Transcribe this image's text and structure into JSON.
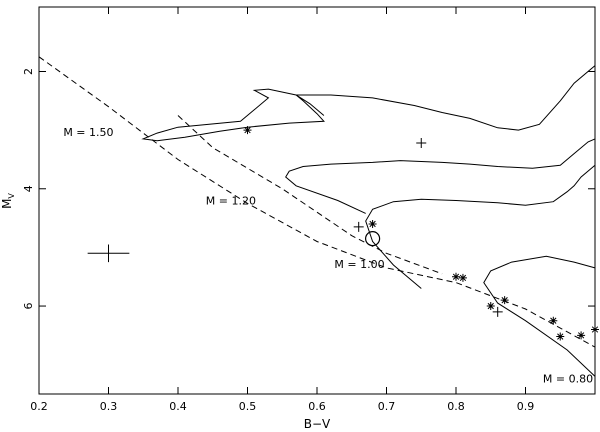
{
  "chart_data": {
    "type": "line",
    "xlabel": "B−V",
    "ylabel": "M",
    "ylabel_sub": "V",
    "xlim": [
      0.2,
      1.0
    ],
    "ylim": [
      7.5,
      0.9
    ],
    "x_ticks": [
      0.2,
      0.3,
      0.4,
      0.5,
      0.6,
      0.7,
      0.8,
      0.9
    ],
    "x_tick_labels": [
      "0.2",
      "0.3",
      "0.4",
      "0.5",
      "0.6",
      "0.7",
      "0.8",
      "0.9"
    ],
    "y_ticks": [
      2,
      4,
      6
    ],
    "y_tick_labels": [
      "2",
      "4",
      "6"
    ],
    "grid": false,
    "tracks": [
      {
        "label": "M =  1.50",
        "label_at": [
          0.235,
          3.1
        ],
        "values": [
          [
            0.61,
            2.75
          ],
          [
            0.59,
            2.55
          ],
          [
            0.57,
            2.4
          ],
          [
            0.53,
            2.3
          ],
          [
            0.51,
            2.32
          ],
          [
            0.53,
            2.45
          ],
          [
            0.49,
            2.85
          ],
          [
            0.4,
            2.95
          ],
          [
            0.37,
            3.05
          ],
          [
            0.35,
            3.15
          ],
          [
            0.37,
            3.18
          ],
          [
            0.41,
            3.12
          ],
          [
            0.46,
            3.02
          ],
          [
            0.5,
            2.95
          ],
          [
            0.56,
            2.88
          ],
          [
            0.61,
            2.85
          ],
          [
            0.6,
            2.72
          ],
          [
            0.58,
            2.5
          ],
          [
            0.57,
            2.4
          ],
          [
            0.62,
            2.4
          ],
          [
            0.68,
            2.45
          ],
          [
            0.74,
            2.58
          ],
          [
            0.78,
            2.7
          ],
          [
            0.82,
            2.8
          ],
          [
            0.86,
            2.96
          ],
          [
            0.89,
            3.0
          ],
          [
            0.92,
            2.9
          ],
          [
            0.95,
            2.5
          ],
          [
            0.97,
            2.2
          ],
          [
            1.0,
            1.9
          ]
        ]
      },
      {
        "label": "M =  1.20",
        "label_at": [
          0.44,
          4.27
        ],
        "values": [
          [
            0.67,
            4.42
          ],
          [
            0.63,
            4.2
          ],
          [
            0.57,
            3.95
          ],
          [
            0.555,
            3.8
          ],
          [
            0.56,
            3.7
          ],
          [
            0.58,
            3.62
          ],
          [
            0.62,
            3.58
          ],
          [
            0.68,
            3.55
          ],
          [
            0.72,
            3.52
          ],
          [
            0.78,
            3.55
          ],
          [
            0.82,
            3.58
          ],
          [
            0.86,
            3.62
          ],
          [
            0.91,
            3.65
          ],
          [
            0.95,
            3.6
          ],
          [
            0.97,
            3.4
          ],
          [
            0.99,
            3.2
          ],
          [
            1.0,
            3.15
          ]
        ]
      },
      {
        "label": "M =  1.00",
        "label_at": [
          0.625,
          5.35
        ],
        "values": [
          [
            0.75,
            5.7
          ],
          [
            0.71,
            5.3
          ],
          [
            0.68,
            4.9
          ],
          [
            0.67,
            4.55
          ],
          [
            0.68,
            4.35
          ],
          [
            0.71,
            4.22
          ],
          [
            0.75,
            4.18
          ],
          [
            0.8,
            4.2
          ],
          [
            0.86,
            4.24
          ],
          [
            0.9,
            4.28
          ],
          [
            0.94,
            4.22
          ],
          [
            0.96,
            4.05
          ],
          [
            0.97,
            3.95
          ],
          [
            0.98,
            3.8
          ],
          [
            1.0,
            3.6
          ]
        ]
      },
      {
        "label": "M =  0.80",
        "label_at": [
          0.925,
          7.3
        ],
        "values": [
          [
            1.0,
            7.2
          ],
          [
            0.96,
            6.75
          ],
          [
            0.9,
            6.25
          ],
          [
            0.86,
            5.95
          ],
          [
            0.84,
            5.6
          ],
          [
            0.85,
            5.4
          ],
          [
            0.88,
            5.25
          ],
          [
            0.93,
            5.15
          ],
          [
            0.97,
            5.25
          ],
          [
            1.0,
            5.35
          ]
        ]
      }
    ],
    "isochrone": [
      {
        "values": [
          [
            0.2,
            1.75
          ],
          [
            0.3,
            2.6
          ],
          [
            0.4,
            3.5
          ],
          [
            0.5,
            4.25
          ],
          [
            0.6,
            4.9
          ],
          [
            0.7,
            5.35
          ],
          [
            0.8,
            5.6
          ],
          [
            0.9,
            6.05
          ],
          [
            1.0,
            6.7
          ]
        ]
      },
      {
        "values": [
          [
            0.4,
            2.75
          ],
          [
            0.45,
            3.3
          ],
          [
            0.55,
            4.0
          ],
          [
            0.65,
            4.8
          ],
          [
            0.7,
            5.1
          ],
          [
            0.78,
            5.45
          ]
        ]
      }
    ],
    "stars": [
      [
        0.5,
        3.0
      ],
      [
        0.68,
        4.6
      ],
      [
        0.8,
        5.5
      ],
      [
        0.81,
        5.52
      ],
      [
        0.85,
        6.0
      ],
      [
        0.87,
        5.9
      ],
      [
        0.94,
        6.25
      ],
      [
        0.95,
        6.52
      ],
      [
        0.98,
        6.5
      ],
      [
        1.0,
        6.4
      ]
    ],
    "plus_points": [
      [
        0.66,
        4.65
      ],
      [
        0.86,
        6.1
      ],
      [
        0.75,
        3.22
      ]
    ],
    "sun": [
      0.68,
      4.85
    ],
    "error_bar": {
      "x": 0.3,
      "y": 5.1,
      "xerr": 0.03,
      "yerr": 0.15
    }
  }
}
